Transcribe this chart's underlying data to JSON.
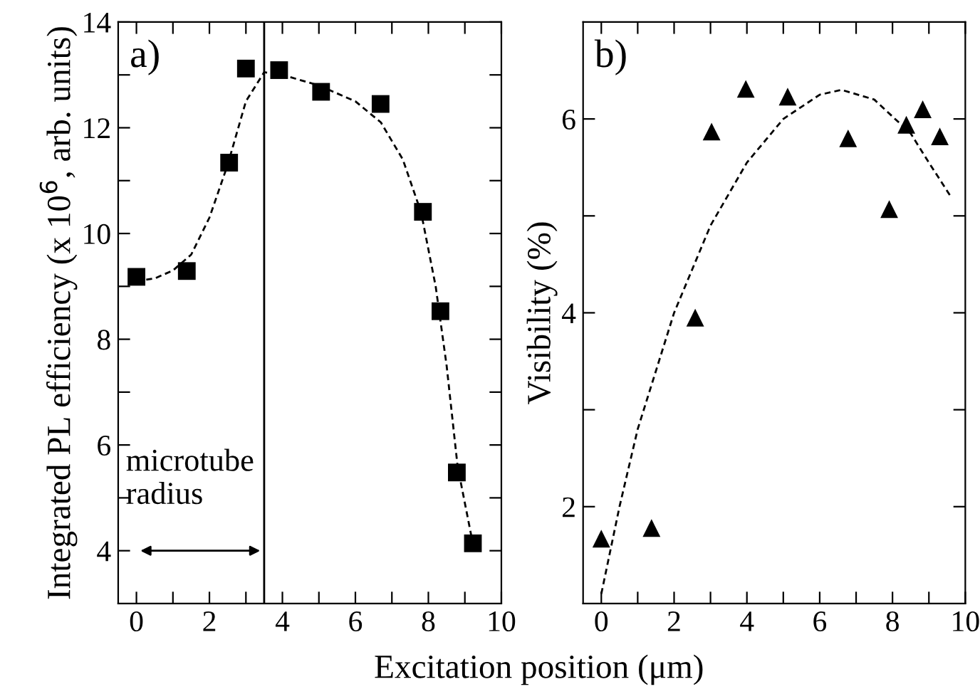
{
  "chart_data": [
    {
      "type": "scatter",
      "ylabel": "Integrated PL efficiency (x 10$^{6}$, arb. units)",
      "xlabel": "Excitation position (μm)",
      "xlim": [
        -0.5,
        10
      ],
      "ylim": [
        3,
        14
      ],
      "xticks": [
        0,
        {
          "value": 1,
          "label": null
        },
        2,
        {
          "value": 3,
          "label": null
        },
        4,
        {
          "value": 5,
          "label": null
        },
        6,
        {
          "value": 7,
          "label": null
        },
        8,
        {
          "value": 9,
          "label": null
        },
        10
      ],
      "yticks": [
        4,
        {
          "value": 5,
          "label": null
        },
        6,
        {
          "value": 7,
          "label": null
        },
        8,
        {
          "value": 9,
          "label": null
        },
        10,
        {
          "value": 11,
          "label": null
        },
        12,
        {
          "value": 13,
          "label": null
        },
        14
      ],
      "series": [
        {
          "marker": "square",
          "color": "#000000",
          "x": [
            0,
            1.38,
            2.54,
            3.0,
            3.91,
            5.06,
            6.69,
            7.85,
            8.33,
            8.78,
            9.22
          ],
          "values": [
            9.18,
            9.29,
            11.34,
            13.12,
            13.09,
            12.68,
            12.45,
            10.41,
            8.53,
            5.48,
            4.14
          ]
        },
        {
          "type": "line",
          "line_style": "dashed",
          "marker": "none",
          "color": "#000000",
          "x": [
            0,
            0.5,
            1,
            1.5,
            2,
            2.5,
            3,
            3.5,
            4,
            5,
            6,
            6.7,
            7.3,
            7.8,
            8.2,
            8.5,
            8.8,
            9.2
          ],
          "values": [
            9.1,
            9.15,
            9.3,
            9.6,
            10.3,
            11.3,
            12.5,
            13.05,
            13.0,
            12.8,
            12.5,
            12.1,
            11.4,
            10.4,
            9.0,
            7.5,
            5.6,
            4.2
          ]
        }
      ],
      "ref_lines": [
        {
          "axis": "x",
          "value": 3.5,
          "color": "#000000",
          "line_style": "solid"
        }
      ],
      "annotations": [
        "a)",
        "microtube\nradius"
      ],
      "grid": false,
      "legend": false
    },
    {
      "type": "scatter",
      "ylabel": "Visibility (%)",
      "xlim": [
        -0.5,
        10
      ],
      "ylim": [
        1,
        7
      ],
      "xticks": [
        0,
        {
          "value": 1,
          "label": null
        },
        2,
        {
          "value": 3,
          "label": null
        },
        4,
        {
          "value": 5,
          "label": null
        },
        6,
        {
          "value": 7,
          "label": null
        },
        8,
        {
          "value": 9,
          "label": null
        },
        10
      ],
      "yticks": [
        2,
        {
          "value": 3,
          "label": null
        },
        4,
        {
          "value": 5,
          "label": null
        },
        6
      ],
      "series": [
        {
          "marker": "triangle",
          "color": "#000000",
          "x": [
            0,
            1.38,
            2.58,
            3.03,
            3.97,
            5.12,
            6.78,
            7.91,
            8.38,
            8.83,
            9.3
          ],
          "values": [
            1.67,
            1.78,
            3.95,
            5.87,
            6.31,
            6.23,
            5.8,
            5.07,
            5.94,
            6.1,
            5.82
          ]
        },
        {
          "type": "line",
          "line_style": "dashed",
          "marker": "none",
          "color": "#000000",
          "x": [
            0,
            0.5,
            1,
            2,
            3,
            4,
            5,
            6,
            6.6,
            7.5,
            8.5,
            9,
            9.6
          ],
          "values": [
            1.1,
            2.0,
            2.8,
            4.0,
            4.9,
            5.55,
            6.0,
            6.25,
            6.3,
            6.2,
            5.85,
            5.55,
            5.2
          ]
        }
      ],
      "annotations": [
        "b)"
      ],
      "grid": false,
      "legend": false
    }
  ]
}
